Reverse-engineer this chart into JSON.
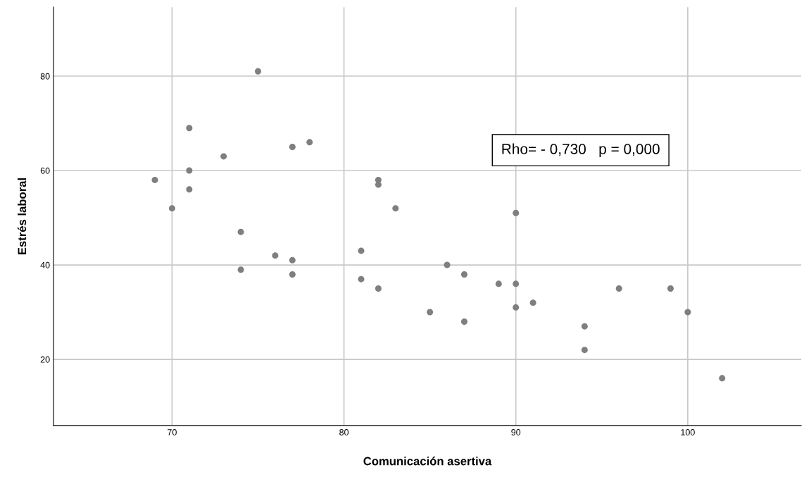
{
  "chart_data": {
    "type": "scatter",
    "xlabel": "Comunicación asertiva",
    "ylabel": "Estrés laboral",
    "annotations": [
      "Rho= - 0,730   p = 0,000"
    ],
    "x": [
      69,
      70,
      71,
      71,
      71,
      73,
      74,
      74,
      75,
      76,
      77,
      77,
      77,
      78,
      81,
      81,
      82,
      82,
      82,
      83,
      85,
      86,
      87,
      87,
      89,
      90,
      90,
      90,
      91,
      94,
      94,
      96,
      99,
      100,
      102
    ],
    "series": [
      {
        "color": "#7f7f7f",
        "values": [
          58,
          52,
          69,
          60,
          56,
          63,
          47,
          39,
          81,
          42,
          65,
          41,
          38,
          66,
          43,
          37,
          58,
          57,
          35,
          52,
          30,
          40,
          38,
          28,
          36,
          51,
          36,
          31,
          32,
          27,
          22,
          35,
          35,
          30,
          16
        ]
      }
    ],
    "xlim": [
      63.1,
      106.6
    ],
    "ylim": [
      6,
      94.6
    ],
    "xticks": [
      70,
      80,
      90,
      100
    ],
    "yticks": [
      20,
      40,
      60,
      80
    ],
    "grid": true,
    "marker": "circle"
  }
}
